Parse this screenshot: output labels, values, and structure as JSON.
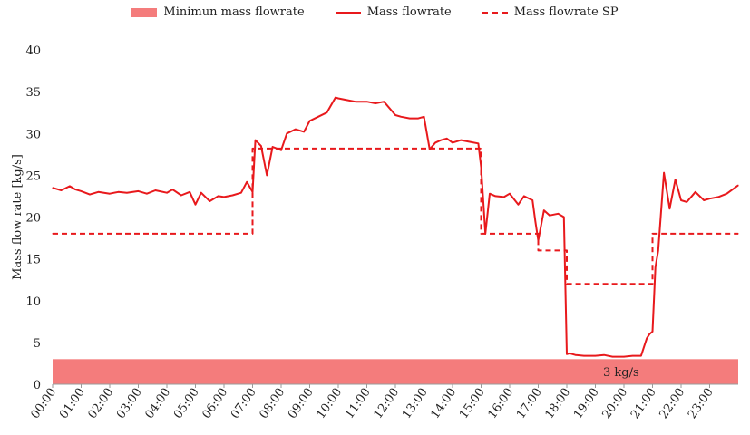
{
  "chart_data": {
    "type": "line",
    "ylabel": "Mass flow rate [kg/s]",
    "ylim": [
      0,
      40
    ],
    "yticks": [
      0,
      5,
      10,
      15,
      20,
      25,
      30,
      35,
      40
    ],
    "xlim": [
      0,
      24
    ],
    "x_tick_labels": [
      "00:00",
      "01:00",
      "02:00",
      "03:00",
      "04:00",
      "05:00",
      "06:00",
      "07:00",
      "08:00",
      "09:00",
      "10:00",
      "11:00",
      "12:00",
      "13:00",
      "14:00",
      "15:00",
      "16:00",
      "17:00",
      "18:00",
      "19:00",
      "20:00",
      "21:00",
      "22:00",
      "23:00"
    ],
    "grid": false,
    "legend_position": "top",
    "band": {
      "name": "Minimun mass flowrate",
      "value": 3,
      "label": "3 kg/s",
      "color": "#f47c7c"
    },
    "series": [
      {
        "name": "Mass flowrate",
        "style": "solid",
        "color": "#e8191c",
        "x": [
          0,
          0.3,
          0.6,
          0.8,
          1,
          1.3,
          1.6,
          2,
          2.3,
          2.6,
          3,
          3.3,
          3.6,
          4,
          4.2,
          4.5,
          4.8,
          5,
          5.2,
          5.5,
          5.8,
          6,
          6.3,
          6.6,
          6.8,
          7,
          7.1,
          7.3,
          7.5,
          7.7,
          8,
          8.2,
          8.5,
          8.8,
          9,
          9.3,
          9.6,
          9.9,
          10,
          10.3,
          10.6,
          11,
          11.3,
          11.6,
          12,
          12.2,
          12.5,
          12.8,
          13,
          13.2,
          13.4,
          13.6,
          13.8,
          14,
          14.3,
          14.6,
          14.9,
          15,
          15.15,
          15.3,
          15.5,
          15.8,
          16,
          16.3,
          16.5,
          16.8,
          16.9,
          17,
          17.2,
          17.4,
          17.7,
          17.9,
          18,
          18.1,
          18.3,
          18.6,
          19,
          19.3,
          19.6,
          20,
          20.3,
          20.6,
          20.8,
          20.9,
          21,
          21.1,
          21.2,
          21.4,
          21.6,
          21.8,
          22,
          22.2,
          22.5,
          22.8,
          23,
          23.3,
          23.6,
          24
        ],
        "values": [
          23.5,
          23.2,
          23.7,
          23.3,
          23.1,
          22.7,
          23,
          22.8,
          23,
          22.9,
          23.1,
          22.8,
          23.2,
          22.9,
          23.3,
          22.6,
          23,
          21.5,
          22.9,
          21.9,
          22.5,
          22.4,
          22.6,
          22.9,
          24.2,
          23,
          29.2,
          28.5,
          25,
          28.4,
          28,
          30,
          30.5,
          30.2,
          31.5,
          32,
          32.5,
          34.3,
          34.2,
          34,
          33.8,
          33.8,
          33.6,
          33.8,
          32.2,
          32,
          31.8,
          31.8,
          32,
          28.1,
          28.9,
          29.2,
          29.4,
          28.9,
          29.2,
          29,
          28.8,
          26,
          18,
          22.8,
          22.5,
          22.4,
          22.8,
          21.5,
          22.5,
          22,
          19.5,
          17.2,
          20.8,
          20.2,
          20.4,
          20,
          3.6,
          3.7,
          3.5,
          3.4,
          3.4,
          3.5,
          3.3,
          3.3,
          3.4,
          3.4,
          5.5,
          6,
          6.3,
          14,
          16,
          25.3,
          21,
          24.5,
          22,
          21.8,
          23,
          22,
          22.2,
          22.4,
          22.8,
          23.8
        ]
      },
      {
        "name": "Mass flowrate SP",
        "style": "dashed",
        "color": "#e8191c",
        "x": [
          0,
          7,
          7,
          15,
          15,
          17,
          17,
          18,
          18,
          21,
          21,
          24
        ],
        "values": [
          18,
          18,
          28.2,
          28.2,
          18,
          18,
          16,
          16,
          12,
          12,
          18,
          18
        ]
      }
    ]
  }
}
